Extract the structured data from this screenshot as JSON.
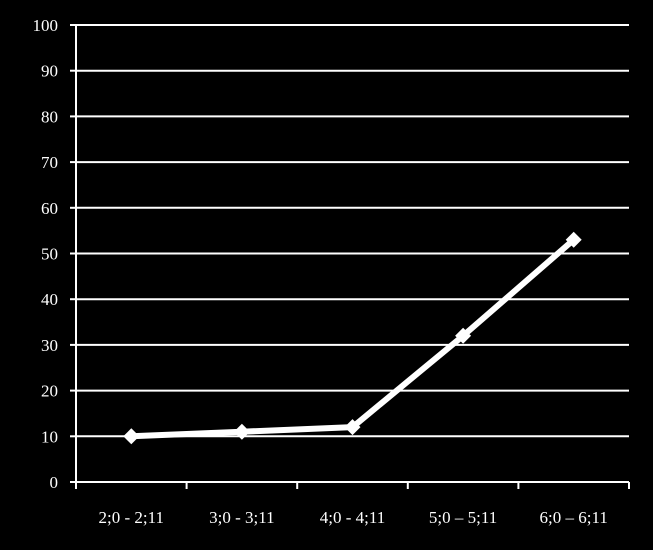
{
  "chart_data": {
    "type": "line",
    "categories": [
      "2;0 - 2;11",
      "3;0 - 3;11",
      "4;0 - 4;11",
      "5;0 – 5;11",
      "6;0 – 6;11"
    ],
    "series": [
      {
        "values": [
          10,
          11,
          12,
          32,
          53
        ]
      }
    ],
    "ylim": [
      0,
      100
    ],
    "yticks": [
      0,
      10,
      20,
      30,
      40,
      50,
      60,
      70,
      80,
      90,
      100
    ],
    "grid": true,
    "marker": "diamond",
    "colors": {
      "background": "#000000",
      "foreground": "#ffffff"
    }
  }
}
